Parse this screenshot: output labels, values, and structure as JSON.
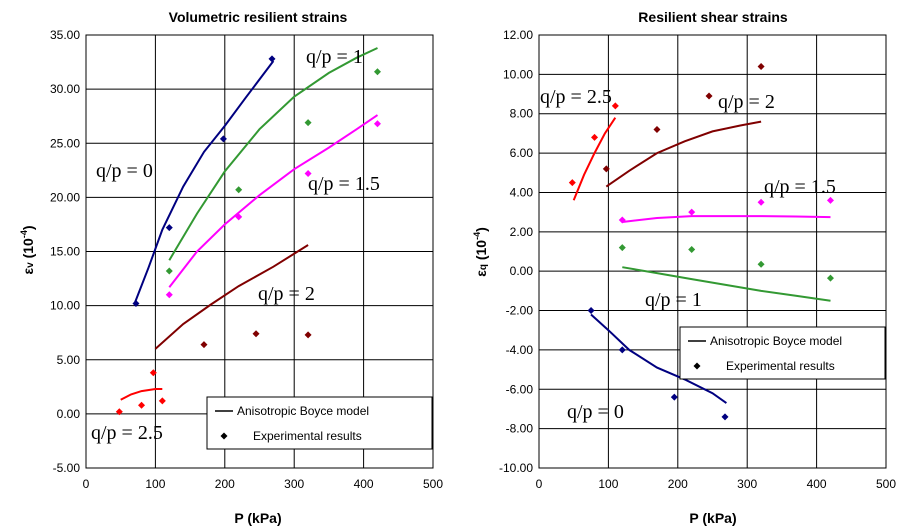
{
  "chart_data": [
    {
      "type": "scatter",
      "title": "Volumetric resilient strains",
      "xlabel": "P (kPa)",
      "ylabel": "εv (10⁻⁴)",
      "ylabel_main": "ε",
      "ylabel_sub": "v",
      "ylabel_paren": " (10",
      "ylabel_exp": "-4",
      "ylabel_close": ")",
      "xlim": [
        0,
        500
      ],
      "ylim": [
        -5,
        35
      ],
      "xticks": [
        0,
        100,
        200,
        300,
        400,
        500
      ],
      "xtick_labels": [
        "0",
        "100",
        "200",
        "300",
        "400",
        "500"
      ],
      "yticks": [
        -5,
        0,
        5,
        10,
        15,
        20,
        25,
        30,
        35
      ],
      "ytick_labels": [
        "-5.00",
        "0.00",
        "5.00",
        "10.00",
        "15.00",
        "20.00",
        "25.00",
        "30.00",
        "35.00"
      ],
      "grid": true,
      "legend_position": "bottom-right",
      "legend": {
        "model": "Anisotropic Boyce model",
        "experimental": "Experimental results"
      },
      "series": [
        {
          "label": "q/p = 0",
          "color": "#000080",
          "model": [
            [
              70,
              10.2
            ],
            [
              90,
              13.5
            ],
            [
              110,
              17.0
            ],
            [
              140,
              21.0
            ],
            [
              170,
              24.2
            ],
            [
              200,
              26.6
            ],
            [
              230,
              29.2
            ],
            [
              270,
              32.6
            ]
          ],
          "experimental": [
            [
              72,
              10.2
            ],
            [
              120,
              17.2
            ],
            [
              198,
              25.4
            ],
            [
              268,
              32.8
            ]
          ]
        },
        {
          "label": "q/p = 1",
          "color": "#339933",
          "model": [
            [
              120,
              14.2
            ],
            [
              160,
              18.5
            ],
            [
              200,
              22.4
            ],
            [
              250,
              26.3
            ],
            [
              300,
              29.3
            ],
            [
              350,
              31.5
            ],
            [
              390,
              32.9
            ],
            [
              420,
              33.8
            ]
          ],
          "experimental": [
            [
              120,
              13.2
            ],
            [
              220,
              20.7
            ],
            [
              320,
              26.9
            ],
            [
              420,
              31.6
            ]
          ]
        },
        {
          "label": "q/p = 1.5",
          "color": "#FF00FF",
          "model": [
            [
              120,
              11.7
            ],
            [
              160,
              15.0
            ],
            [
              200,
              17.5
            ],
            [
              250,
              20.2
            ],
            [
              300,
              22.6
            ],
            [
              350,
              24.6
            ],
            [
              390,
              26.3
            ],
            [
              420,
              27.6
            ]
          ],
          "experimental": [
            [
              120,
              11.0
            ],
            [
              220,
              18.2
            ],
            [
              320,
              22.2
            ],
            [
              420,
              26.8
            ]
          ]
        },
        {
          "label": "q/p = 2",
          "color": "#800000",
          "model": [
            [
              100,
              6.0
            ],
            [
              140,
              8.3
            ],
            [
              180,
              10.1
            ],
            [
              220,
              11.8
            ],
            [
              270,
              13.6
            ],
            [
              320,
              15.6
            ]
          ],
          "experimental": [
            [
              170,
              6.4
            ],
            [
              245,
              7.4
            ],
            [
              320,
              7.3
            ]
          ]
        },
        {
          "label": "q/p = 2.5",
          "color": "#FF0000",
          "model": [
            [
              50,
              1.3
            ],
            [
              65,
              1.8
            ],
            [
              80,
              2.1
            ],
            [
              100,
              2.3
            ],
            [
              110,
              2.3
            ]
          ],
          "experimental": [
            [
              48,
              0.2
            ],
            [
              80,
              0.8
            ],
            [
              97,
              3.8
            ],
            [
              110,
              1.2
            ]
          ]
        }
      ]
    },
    {
      "type": "scatter",
      "title": "Resilient shear strains",
      "xlabel": "P (kPa)",
      "ylabel": "εq (10⁻⁴)",
      "ylabel_main": "ε",
      "ylabel_sub": "q",
      "ylabel_paren": " (10",
      "ylabel_exp": "-4",
      "ylabel_close": ")",
      "xlim": [
        0,
        500
      ],
      "ylim": [
        -10,
        12
      ],
      "xticks": [
        0,
        100,
        200,
        300,
        400,
        500
      ],
      "xtick_labels": [
        "0",
        "100",
        "200",
        "300",
        "400",
        "500"
      ],
      "yticks": [
        -10,
        -8,
        -6,
        -4,
        -2,
        0,
        2,
        4,
        6,
        8,
        10,
        12
      ],
      "ytick_labels": [
        "-10.00",
        "-8.00",
        "-6.00",
        "-4.00",
        "-2.00",
        "0.00",
        "2.00",
        "4.00",
        "6.00",
        "8.00",
        "10.00",
        "12.00"
      ],
      "grid": true,
      "legend_position": "right",
      "legend": {
        "model": "Anisotropic Boyce model",
        "experimental": "Experimental results"
      },
      "series": [
        {
          "label": "q/p = 0",
          "color": "#000080",
          "model": [
            [
              75,
              -2.2
            ],
            [
              100,
              -3.0
            ],
            [
              130,
              -4.0
            ],
            [
              170,
              -4.9
            ],
            [
              210,
              -5.5
            ],
            [
              250,
              -6.2
            ],
            [
              270,
              -6.7
            ]
          ],
          "experimental": [
            [
              75,
              -2.0
            ],
            [
              120,
              -4.0
            ],
            [
              195,
              -6.4
            ],
            [
              268,
              -7.4
            ]
          ]
        },
        {
          "label": "q/p = 1",
          "color": "#339933",
          "model": [
            [
              120,
              0.2
            ],
            [
              170,
              -0.1
            ],
            [
              220,
              -0.4
            ],
            [
              270,
              -0.7
            ],
            [
              320,
              -1.0
            ],
            [
              370,
              -1.25
            ],
            [
              420,
              -1.5
            ]
          ],
          "experimental": [
            [
              120,
              1.2
            ],
            [
              220,
              1.1
            ],
            [
              320,
              0.35
            ],
            [
              420,
              -0.35
            ]
          ]
        },
        {
          "label": "q/p = 1.5",
          "color": "#FF00FF",
          "model": [
            [
              120,
              2.5
            ],
            [
              170,
              2.7
            ],
            [
              220,
              2.8
            ],
            [
              270,
              2.8
            ],
            [
              320,
              2.8
            ],
            [
              370,
              2.78
            ],
            [
              420,
              2.75
            ]
          ],
          "experimental": [
            [
              120,
              2.6
            ],
            [
              220,
              3.0
            ],
            [
              320,
              3.5
            ],
            [
              420,
              3.6
            ]
          ]
        },
        {
          "label": "q/p = 2",
          "color": "#800000",
          "model": [
            [
              97,
              4.3
            ],
            [
              130,
              5.1
            ],
            [
              170,
              6.0
            ],
            [
              210,
              6.6
            ],
            [
              250,
              7.1
            ],
            [
              290,
              7.4
            ],
            [
              320,
              7.6
            ]
          ],
          "experimental": [
            [
              97,
              5.2
            ],
            [
              170,
              7.2
            ],
            [
              245,
              8.9
            ],
            [
              320,
              10.4
            ]
          ]
        },
        {
          "label": "q/p = 2.5",
          "color": "#FF0000",
          "model": [
            [
              50,
              3.6
            ],
            [
              65,
              4.9
            ],
            [
              80,
              6.0
            ],
            [
              95,
              7.0
            ],
            [
              110,
              7.8
            ]
          ],
          "experimental": [
            [
              48,
              4.5
            ],
            [
              80,
              6.8
            ],
            [
              110,
              8.4
            ]
          ]
        }
      ]
    }
  ]
}
